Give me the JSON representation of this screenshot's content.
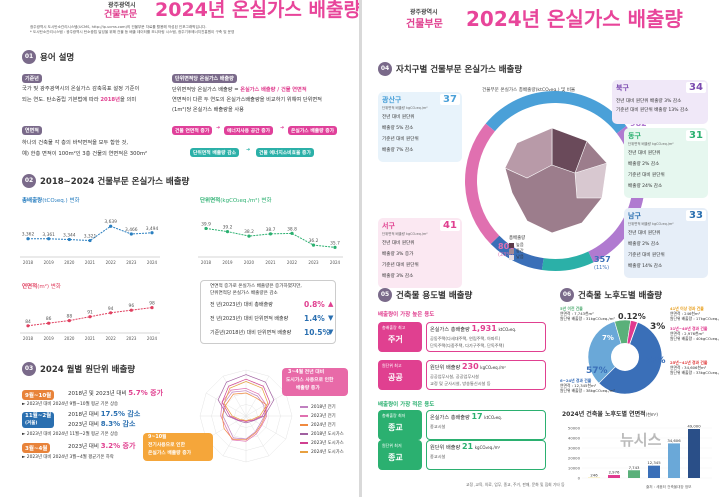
{
  "left": {
    "header": {
      "top_label": "광주광역시",
      "sub_label": "건물부문",
      "title": "2024년 온실가스 배출량",
      "source1": "광주광역시 도시탄소관리시스템(UCMS, http://ip.ucms.com)의 건물부문 자료를 활용해 작성된 인포그래픽입니다.",
      "source2": "* 도시탄소관리시스템 : 광주광역시 탄소중립 달성을 위해 건물 등 배출 데이터를 모니터링 시스템, 광주기후에너지진흥원이 구축 및 운영"
    },
    "s1": {
      "num": "01",
      "title": "용어 설명",
      "base_tag": "기준년",
      "base_text1": "국가 및 광주광역시의 온실가스 감축목표 설정 기준이",
      "base_text2": "되는 연도. 탄소중립 기본법에 따라 ",
      "base_year": "2018년",
      "base_text3": "을 의미",
      "area_tag": "연면적",
      "area_text1": "하나의 건축물 각 층의 바닥면적을 모두 합한 것,",
      "area_text2": "예) 한층 면적이 100m²인 3층 건물의 연면적은 300m²",
      "unit_tag": "단위면적당 온실가스 배출량",
      "unit_t1": "단위면적당 온실가스 배출량 = ",
      "unit_hl": "온실가스 배출량 / 건물 연면적",
      "unit_t2": "연면적이 다른 두 연도의 온실가스배출량을 비교하기 위해여 단위면적",
      "unit_t3": "(1m²)당 온실가스 배출량을 사용",
      "flow1": [
        "건물 연면적 증가",
        "에너지사용 공간 증가",
        "온실가스 배출량 증가"
      ],
      "flow2": [
        "단위면적 배출량 감소",
        "건물 에너지소비효율 증가"
      ]
    },
    "s2": {
      "num": "02",
      "title": "2018~2024 건물부문 온실가스 배출량",
      "chart_total": {
        "type": "line",
        "title": "총배출량",
        "unit": "(tCO₂eq.) 변화",
        "categories": [
          "2018",
          "2019",
          "2020",
          "2021",
          "2022",
          "2023",
          "2024"
        ],
        "values": [
          3362,
          3361,
          3344,
          3321,
          3639,
          3466,
          3494
        ]
      },
      "chart_unit": {
        "type": "line",
        "title": "단위면적",
        "unit": "(kgCO₂eq./m²) 변화",
        "categories": [
          "2018",
          "2019",
          "2020",
          "2021",
          "2022",
          "2023",
          "2024"
        ],
        "values": [
          39.9,
          39.2,
          38.2,
          38.7,
          38.8,
          36.2,
          35.7
        ]
      },
      "chart_area": {
        "type": "line",
        "title": "연면적",
        "unit": "(m²) 변화",
        "categories": [
          "2018",
          "2019",
          "2020",
          "2021",
          "2022",
          "2023",
          "2024"
        ],
        "values": [
          84,
          86,
          88,
          91,
          94,
          96,
          98
        ]
      },
      "note1": "연면적 증가로 온실가스 배출량은 증가하였지만,",
      "note2": "단위면적당 온실가스 배출량은 감소",
      "cmp": [
        {
          "label": "전 년(2023년) 대비 총배출량",
          "value": "0.8%",
          "dir": "up"
        },
        {
          "label": "전 년(2023년) 대비 단위면적 배출량",
          "value": "1.4%",
          "dir": "down"
        },
        {
          "label": "기준년(2018년) 대비 단위면적 배출량",
          "value": "10.5%",
          "dir": "down"
        }
      ]
    },
    "s3": {
      "num": "03",
      "title": "2024 월별 원단위 배출량",
      "rows": [
        {
          "tag": "9월~10월",
          "t1": "2018년 및 2023년 대비",
          "v1": "5.7% 증가",
          "t2": "",
          "v2": "",
          "note": "► 2023년 대비 2024년 9월~10월 평균 기온 상승"
        },
        {
          "tag": "11월~2월",
          "tag2": "(겨울)",
          "t1": "2018년 대비",
          "v1": "17.5% 감소",
          "t2": "2023년 대비",
          "v2": "8.3% 감소",
          "note": "► 2023년 대비 2024년 11월~2월 평균 기온 상승"
        },
        {
          "tag": "3월~4월",
          "t1": "2023년 대비",
          "v1": "3.2% 증가",
          "t2": "",
          "v2": "",
          "note": "► 2023년 대비 2024년 3월~4월 평균기온 하락"
        }
      ],
      "callout1": [
        "3~4월 전년 대비",
        "도시가스 사용으로 인한",
        "배출량 증가"
      ],
      "callout2": [
        "9~10월",
        "전기사용으로 인한",
        "온실가스 배출량 증가"
      ],
      "legend": [
        "2018년 전기",
        "2023년 전기",
        "2024년 전기",
        "2018년 도시가스",
        "2023년 도시가스",
        "2024년 도시가스"
      ]
    }
  },
  "right": {
    "header": {
      "top_label": "광주광역시",
      "sub_label": "건물부문",
      "title": "2024년 온실가스 배출량"
    },
    "s4": {
      "num": "04",
      "title": "자치구별 건물부문 온실가스 배출량",
      "ring_label": "건물부문 온실가스 총배출량(ktCO₂eq.) 및 비율",
      "segments": [
        {
          "name": "광산구",
          "value": "986",
          "pct": "(28%)"
        },
        {
          "name": "북구",
          "value": "982",
          "pct": "(28%)"
        },
        {
          "name": "동구",
          "value": "323",
          "pct": "(9%)"
        },
        {
          "name": "남구",
          "value": "357",
          "pct": "(11%)"
        },
        {
          "name": "서구",
          "value": "806",
          "pct": "(23%)"
        }
      ],
      "legend_high": "높음",
      "legend_mid": "중간",
      "legend_low": "낮음",
      "legend_title": "총배출량",
      "districts": [
        {
          "name": "광산구",
          "unit": "단위면적 배출량 kgCO₂eq./m²",
          "value": "37",
          "l1": "전년 대비 원단위",
          "l2": "배출량 5% 감소",
          "l3": "기준년 대비 원단위",
          "l4": "배출량 7% 감소"
        },
        {
          "name": "북구",
          "unit": "",
          "value": "34",
          "l1": "전년 대비 원단위 배출량 3% 감소",
          "l2": "기준년 대비 원단위 배출량 13% 감소",
          "l3": "",
          "l4": ""
        },
        {
          "name": "동구",
          "unit": "단위면적 배출량 kgCO₂eq./m²",
          "value": "31",
          "l1": "전년 대비 원단위",
          "l2": "배출량 2% 감소",
          "l3": "기준년 대비 원단위",
          "l4": "배출량 24% 감소"
        },
        {
          "name": "서구",
          "unit": "단위면적 배출량 kgCO₂eq./m²",
          "value": "41",
          "l1": "전년 대비 원단위",
          "l2": "배출량 3% 증가",
          "l3": "기준년 대비 원단위",
          "l4": "배출량 3% 감소"
        },
        {
          "name": "남구",
          "unit": "단위면적 배출량 kgCO₂eq./m²",
          "value": "33",
          "l1": "전년 대비 원단위",
          "l2": "배출량 2% 감소",
          "l3": "기준년 대비 원단위",
          "l4": "배출량 14% 감소"
        }
      ]
    },
    "s5": {
      "num": "05",
      "title": "건축물 용도별 배출량",
      "high_label": "배출량이 가장 높은 용도",
      "low_label": "배출량이 가장 적은 용도",
      "items": [
        {
          "tag": "총배출량 최고",
          "cat": "주거",
          "l1": "온실가스 총배출량 ",
          "v1": "1,931",
          "u1": "ktCO₂eq.",
          "d1": "공동주택(다세대주택, 연립주택, 아파트)",
          "d2": "단독주택(다중주택, 다가구주택, 단독주택)"
        },
        {
          "tag": "원단위 최고",
          "cat": "공공",
          "l1": "원단위 배출량 ",
          "v1": "230",
          "u1": "kgCO₂eq./m²",
          "d1": "공공업무시설, 공공업무시설",
          "d2": "교정 및 군사시설, 방송통신시설 등"
        },
        {
          "tag": "총배출량 최저",
          "cat": "종교",
          "l1": "온실가스 총배출량 ",
          "v1": "17",
          "u1": "ktCO₂eq.",
          "d1": "종교시설",
          "d2": ""
        },
        {
          "tag": "원단위 최저",
          "cat": "종교",
          "l1": "원단위 배출량 ",
          "v1": "21",
          "u1": "kgCO₂eq./m²",
          "d1": "종교시설",
          "d2": ""
        }
      ],
      "footnote": "교정 ,교육, 의료, 업무, 종교, 주거, 판매, 문화 및 집회 기타 등"
    },
    "s6": {
      "num": "06",
      "title": "건축물 노후도별 배출량",
      "pie": [
        {
          "label": "57%",
          "value": 57,
          "color": "#3a6fb8"
        },
        {
          "label": "33%",
          "value": 33,
          "color": "#6aa8d8"
        },
        {
          "label": "7%",
          "value": 7,
          "color": "#5ab07a"
        },
        {
          "label": "3%",
          "value": 3,
          "color": "#e03a8f"
        },
        {
          "label": "0.12%",
          "value": 0.12,
          "color": "#f0d040"
        }
      ],
      "ann": [
        {
          "t": "41년 이상 경과 건물",
          "a": "연면적 : 246천m²",
          "b": "원단위 배출량 : 17kgCO₂eq./m²"
        },
        {
          "t": "31년~40년 경과 건물",
          "a": "연면적 : 2,976천m²",
          "b": "원단위 배출량 : 40kgCO₂eq./m²"
        },
        {
          "t": "5년 이전 건물",
          "a": "연면적 : 7,743천m²",
          "b": "원단위 배출량 : 31kgCO₂eq./m²"
        },
        {
          "t": "25년~41년 경과 건물",
          "a": "연면적 : 34,606천m²",
          "b": "원단위 배출량 : 33kgCO₂eq./m²"
        },
        {
          "t": "6~24년 경과 건물",
          "a": "연면적 : 12,345천m²",
          "b": "원단위 배출량 : 38kgCO₂eq./m²"
        }
      ],
      "bar_title": "2024년 건축물 노후도별 연면적",
      "bar_unit": "(천m²)",
      "bar_chart": {
        "type": "bar",
        "yticks": [
          "50000",
          "40000",
          "30000",
          "20000",
          "10000",
          "0"
        ],
        "values": [
          246,
          2976,
          7743,
          12345,
          34606,
          49000
        ],
        "labels": [
          "246",
          "2,976",
          "7,743",
          "12,345",
          "34,606",
          "49,000"
        ]
      },
      "source": "출처 : 세움터 건축물대장 정보"
    }
  },
  "watermark": "뉴시스"
}
